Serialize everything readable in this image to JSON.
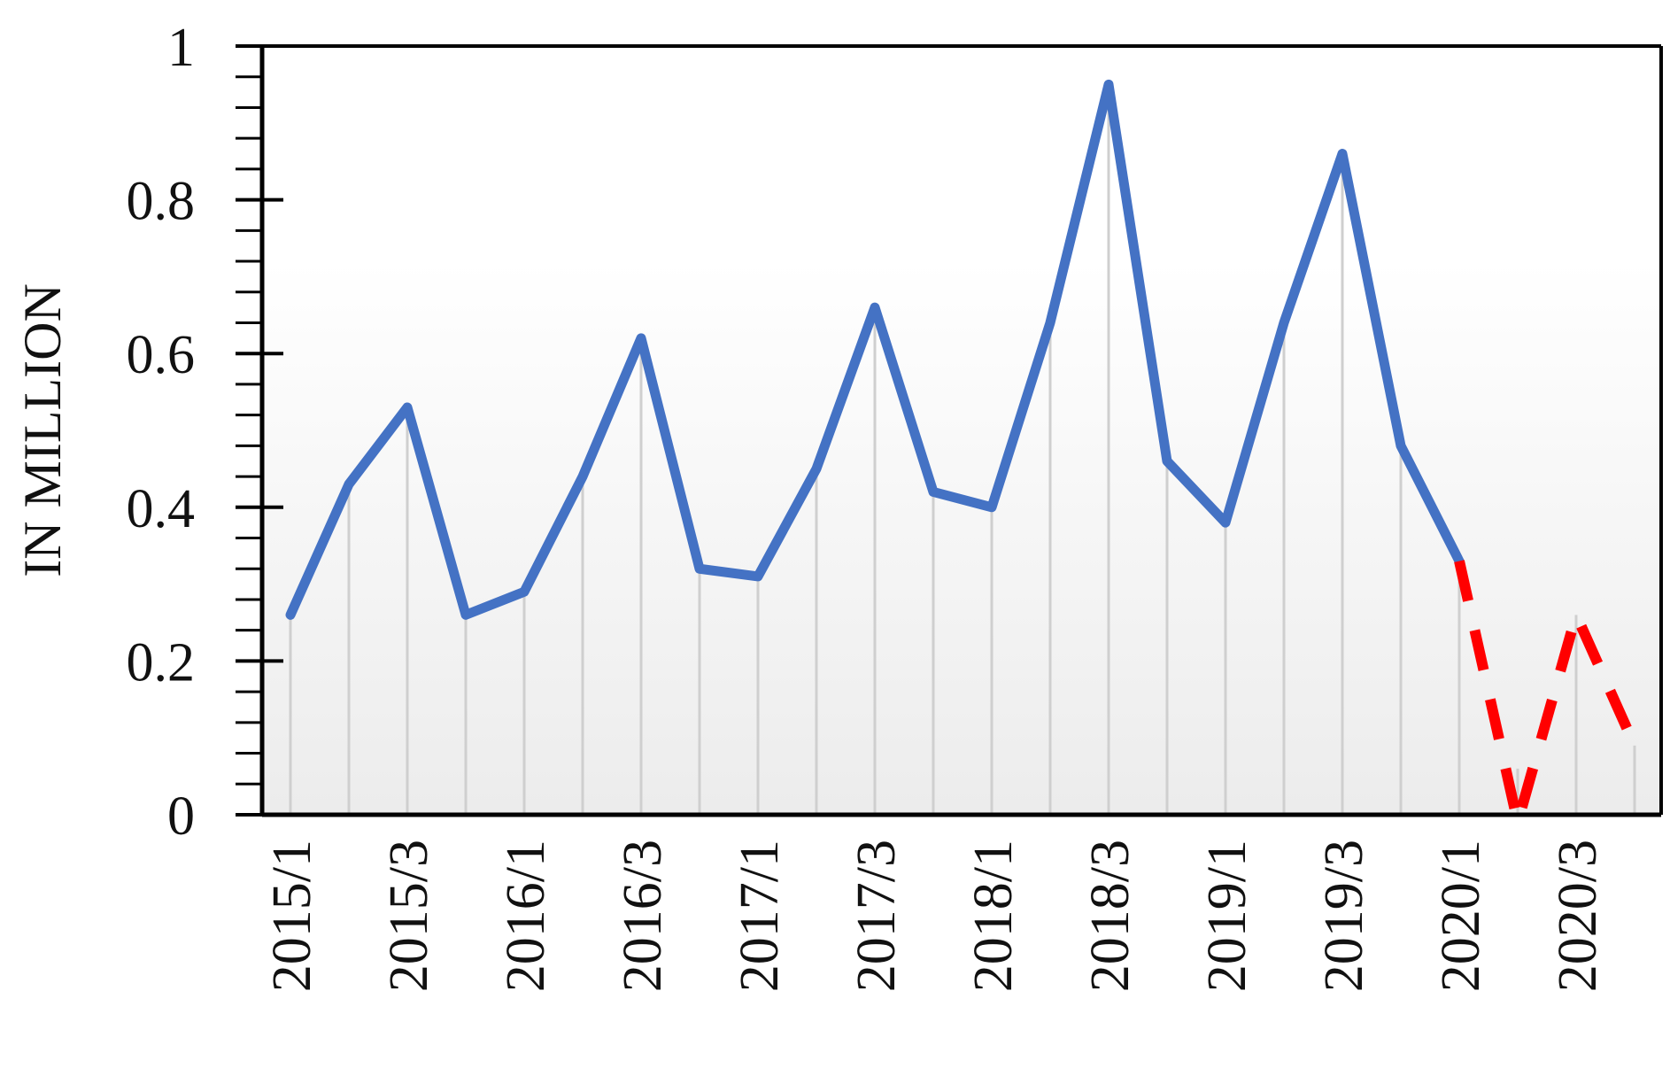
{
  "chart_data": {
    "type": "line",
    "title": "",
    "xlabel": "",
    "ylabel": "IN MILLION",
    "ylim": [
      0,
      1
    ],
    "y_ticks": [
      "0",
      "0.2",
      "0.4",
      "0.6",
      "0.8",
      "1"
    ],
    "y_tick_values": [
      0,
      0.2,
      0.4,
      0.6,
      0.8,
      1
    ],
    "x_tick_labels": [
      "2015/1",
      "2015/3",
      "2016/1",
      "2016/3",
      "2017/1",
      "2017/3",
      "2018/1",
      "2018/3",
      "2019/1",
      "2019/3",
      "2020/1",
      "2020/3"
    ],
    "x": [
      "2015/1",
      "2015/2",
      "2015/3",
      "2015/4",
      "2016/1",
      "2016/2",
      "2016/3",
      "2016/4",
      "2017/1",
      "2017/2",
      "2017/3",
      "2017/4",
      "2018/1",
      "2018/2",
      "2018/3",
      "2018/4",
      "2019/1",
      "2019/2",
      "2019/3",
      "2019/4",
      "2020/1",
      "2020/2",
      "2020/3",
      "2020/4"
    ],
    "series": [
      {
        "style": "solid",
        "color": "#4472C4",
        "values": [
          0.26,
          0.43,
          0.53,
          0.26,
          0.29,
          0.44,
          0.62,
          0.32,
          0.31,
          0.45,
          0.66,
          0.42,
          0.4,
          0.64,
          0.95,
          0.46,
          0.38,
          0.64,
          0.86,
          0.48,
          0.33,
          null,
          null,
          null
        ]
      },
      {
        "style": "dashed",
        "color": "#FF0000",
        "values": [
          null,
          null,
          null,
          null,
          null,
          null,
          null,
          null,
          null,
          null,
          null,
          null,
          null,
          null,
          null,
          null,
          null,
          null,
          null,
          null,
          0.33,
          -0.01,
          0.26,
          0.09
        ]
      }
    ],
    "grid": "vertical drop lines",
    "legend": "none",
    "background": "gradient white to light gray"
  }
}
